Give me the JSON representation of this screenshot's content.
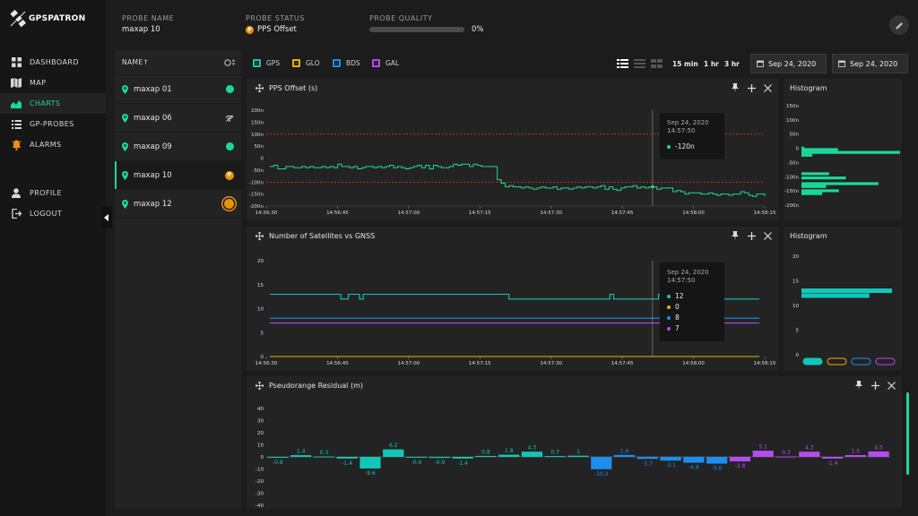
{
  "app": {
    "logo_text": "GPSPATRON"
  },
  "nav": {
    "items": [
      {
        "key": "dashboard",
        "label": "DASHBOARD",
        "icon": "grid-icon"
      },
      {
        "key": "map",
        "label": "MAP",
        "icon": "map-icon"
      },
      {
        "key": "charts",
        "label": "CHARTS",
        "icon": "chart-icon",
        "active": true
      },
      {
        "key": "gp-probes",
        "label": "GP-PROBES",
        "icon": "list-icon"
      },
      {
        "key": "alarms",
        "label": "ALARMS",
        "icon": "bell-icon"
      }
    ],
    "profile_label": "PROFILE",
    "logout_label": "LOGOUT"
  },
  "header": {
    "probe_name_label": "PROBE NAME",
    "probe_name": "maxap 10",
    "probe_status_label": "PROBE STATUS",
    "probe_status": "PPS Offset",
    "probe_status_icon_letter": "P",
    "probe_quality_label": "PROBE QUALITY",
    "probe_quality": "0%",
    "probe_quality_fraction": 0
  },
  "probes": {
    "header_label": "NAME↑",
    "items": [
      {
        "name": "maxap 01",
        "status": "ok"
      },
      {
        "name": "maxap 06",
        "status": "signal"
      },
      {
        "name": "maxap 09",
        "status": "ok"
      },
      {
        "name": "maxap 10",
        "status": "pps",
        "status_letter": "P",
        "selected": true
      },
      {
        "name": "maxap 12",
        "status": "sun"
      }
    ]
  },
  "toolbar": {
    "gnss": [
      {
        "label": "GPS",
        "color": "#12c7b7"
      },
      {
        "label": "GLO",
        "color": "#e8b400"
      },
      {
        "label": "BDS",
        "color": "#1d8ef0"
      },
      {
        "label": "GAL",
        "color": "#b44df0"
      }
    ],
    "ranges": [
      "15 min",
      "1 hr",
      "3 hr"
    ],
    "date_from": "Sep 24, 2020",
    "date_to": "Sep 24, 2020"
  },
  "pps_panel": {
    "title": "PPS Offset (s)",
    "tooltip_date": "Sep 24, 2020",
    "tooltip_time": "14:57:50",
    "tooltip_value": "-120n"
  },
  "sat_panel": {
    "title": "Number of Satellites vs GNSS",
    "tooltip_date": "Sep 24, 2020",
    "tooltip_time": "14:57:50",
    "tooltip_values": [
      "12",
      "0",
      "8",
      "7"
    ]
  },
  "hist1": {
    "title": "Histogram"
  },
  "hist2": {
    "title": "Histogram"
  },
  "residual_panel": {
    "title": "Pseudorange Residual (m)"
  },
  "chart_data": [
    {
      "type": "line",
      "name": "pps-offset",
      "x_ticks": [
        "14:56:30",
        "14:56:45",
        "14:57:00",
        "14:57:15",
        "14:57:30",
        "14:57:45",
        "14:58:00",
        "14:58:15"
      ],
      "y_ticks": [
        "200n",
        "150n",
        "100n",
        "50n",
        "0",
        "-50n",
        "-100n",
        "-150n",
        "-200n"
      ],
      "ylim": [
        -200,
        200
      ],
      "threshold_lines": [
        100,
        -100
      ],
      "color": "#19d99b",
      "values": [
        -35,
        -30,
        -45,
        -45,
        -35,
        -35,
        -40,
        -40,
        -35,
        -40,
        -35,
        -40,
        -40,
        -35,
        -40,
        -35,
        -40,
        -25,
        -35,
        -35,
        -40,
        -35,
        -45,
        -40,
        -35,
        -35,
        -40,
        -35,
        -40,
        -35,
        -30,
        -40,
        -35,
        -40,
        -45,
        -40,
        -35,
        -30,
        -40,
        -30,
        -45,
        -30,
        -35,
        -40,
        -40,
        -35,
        -25,
        -30,
        -25,
        -25,
        -35,
        -25,
        -30,
        -35,
        -35,
        -35,
        -35,
        -90,
        -105,
        -120,
        -115,
        -120,
        -120,
        -125,
        -120,
        -125,
        -130,
        -125,
        -120,
        -125,
        -125,
        -120,
        -130,
        -125,
        -125,
        -130,
        -125,
        -120,
        -125,
        -120,
        -120,
        -125,
        -120,
        -115,
        -130,
        -120,
        -130,
        -135,
        -125,
        -120,
        -120,
        -115,
        -125,
        -120,
        -125,
        -120,
        -120,
        -130,
        -125,
        -125,
        -125,
        -140,
        -135,
        -140,
        -150,
        -145,
        -145,
        -145,
        -150,
        -150,
        -145,
        -150,
        -155,
        -150,
        -150,
        -155,
        -150,
        -150,
        -140,
        -145,
        -155,
        -160,
        -150,
        -150,
        -160
      ],
      "cursor_x_fraction": 0.775
    },
    {
      "type": "line",
      "name": "satellites",
      "x_ticks": [
        "14:56:30",
        "14:56:45",
        "14:57:00",
        "14:57:15",
        "14:57:30",
        "14:57:45",
        "14:58:00",
        "14:58:15"
      ],
      "y_ticks": [
        "20",
        "15",
        "10",
        "5",
        "0"
      ],
      "ylim": [
        0,
        20
      ],
      "series": [
        {
          "name": "GPS",
          "color": "#12c7b7",
          "values": [
            13,
            13,
            13,
            13,
            13,
            13,
            13,
            13,
            13,
            13,
            13,
            13,
            13,
            13,
            13,
            13,
            13,
            13,
            13,
            12,
            12,
            13,
            13,
            13,
            12,
            13,
            13,
            13,
            13,
            13,
            13,
            13,
            13,
            13,
            13,
            13,
            13,
            13,
            13,
            13,
            13,
            13,
            13,
            13,
            13,
            13,
            13,
            13,
            13,
            13,
            13,
            13,
            13,
            13,
            13,
            13,
            13,
            13,
            13,
            13,
            13,
            13,
            13,
            13,
            12,
            12,
            12,
            12,
            12,
            12,
            12,
            12,
            12,
            12,
            12,
            12,
            12,
            12,
            12,
            12,
            12,
            12,
            12,
            12,
            12,
            12,
            12,
            12,
            12,
            12,
            12,
            13,
            12,
            12,
            12,
            12,
            12,
            12,
            12,
            12,
            12,
            12,
            12,
            12,
            13,
            12,
            12,
            12,
            12,
            12,
            12,
            12,
            12,
            12,
            12,
            12,
            12,
            12,
            12,
            12,
            12,
            12,
            12,
            12,
            12,
            12,
            12,
            12,
            12,
            12,
            12,
            12
          ]
        },
        {
          "name": "GLO",
          "color": "#e8b400",
          "values": [
            0,
            0
          ]
        },
        {
          "name": "BDS",
          "color": "#1d8ef0",
          "values": [
            8,
            8
          ]
        },
        {
          "name": "GAL",
          "color": "#b44df0",
          "values": [
            7,
            7
          ]
        }
      ],
      "cursor_x_fraction": 0.775
    },
    {
      "type": "bar",
      "name": "histogram-pps",
      "y_ticks": [
        "150n",
        "100n",
        "50n",
        "0",
        "-50n",
        "-100n",
        "-150n",
        "-200n"
      ],
      "ylim": [
        -200,
        150
      ],
      "bins": [
        {
          "y": 0,
          "count": 3
        },
        {
          "y": -5,
          "count": 37
        },
        {
          "y": -15,
          "count": 100
        },
        {
          "y": -25,
          "count": 11
        },
        {
          "y": -90,
          "count": 28
        },
        {
          "y": -105,
          "count": 45
        },
        {
          "y": -125,
          "count": 78
        },
        {
          "y": -135,
          "count": 25
        },
        {
          "y": -150,
          "count": 38
        },
        {
          "y": -160,
          "count": 21
        }
      ],
      "color": "#19d99b"
    },
    {
      "type": "bar",
      "name": "histogram-satellites",
      "y_ticks": [
        "20",
        "15",
        "10",
        "5",
        "0"
      ],
      "ylim": [
        0,
        20
      ],
      "bins": [
        {
          "y": 13,
          "count": 100
        },
        {
          "y": 12,
          "count": 75
        }
      ],
      "legend_colors": [
        "#12c7b7",
        "#e8b400",
        "#1d8ef0",
        "#b44df0"
      ],
      "color": "#12c7b7"
    },
    {
      "type": "bar",
      "name": "pseudorange-residual",
      "y_ticks": [
        "40",
        "30",
        "20",
        "10",
        "0",
        "-10",
        "-20",
        "-30",
        "-40"
      ],
      "ylim": [
        -40,
        40
      ],
      "values": [
        -0.8,
        1.4,
        0.3,
        -1.4,
        -9.6,
        6.2,
        -0.6,
        -0.9,
        -1.4,
        0.8,
        1.8,
        4.3,
        0.7,
        1,
        -10.2,
        1.6,
        -1.7,
        -3.1,
        -4.8,
        -5.6,
        -3.8,
        5.1,
        0.3,
        4.3,
        -1.4,
        1.5,
        4.5
      ],
      "labels": [
        "-0.8",
        "1.4",
        "0.3",
        "-1.4",
        "-9.6",
        "6.2",
        "-0.6",
        "-0.9",
        "-1.4",
        "0.8",
        "1.8",
        "4.3",
        "0.7",
        "1",
        "-10.2",
        "1.6",
        "-1.7",
        "-3.1",
        "-4.8",
        "-5.6",
        "-3.8",
        "5.1",
        "0.3",
        "4.3",
        "-1.4",
        "1.5",
        "4.5"
      ],
      "colors": [
        "#12c7b7",
        "#12c7b7",
        "#12c7b7",
        "#12c7b7",
        "#12c7b7",
        "#12c7b7",
        "#12c7b7",
        "#12c7b7",
        "#12c7b7",
        "#12c7b7",
        "#12c7b7",
        "#12c7b7",
        "#12c7b7",
        "#12c7b7",
        "#1d8ef0",
        "#1d8ef0",
        "#1d8ef0",
        "#1d8ef0",
        "#1d8ef0",
        "#1d8ef0",
        "#b44df0",
        "#b44df0",
        "#b44df0",
        "#b44df0",
        "#b44df0",
        "#b44df0",
        "#b44df0"
      ]
    }
  ]
}
